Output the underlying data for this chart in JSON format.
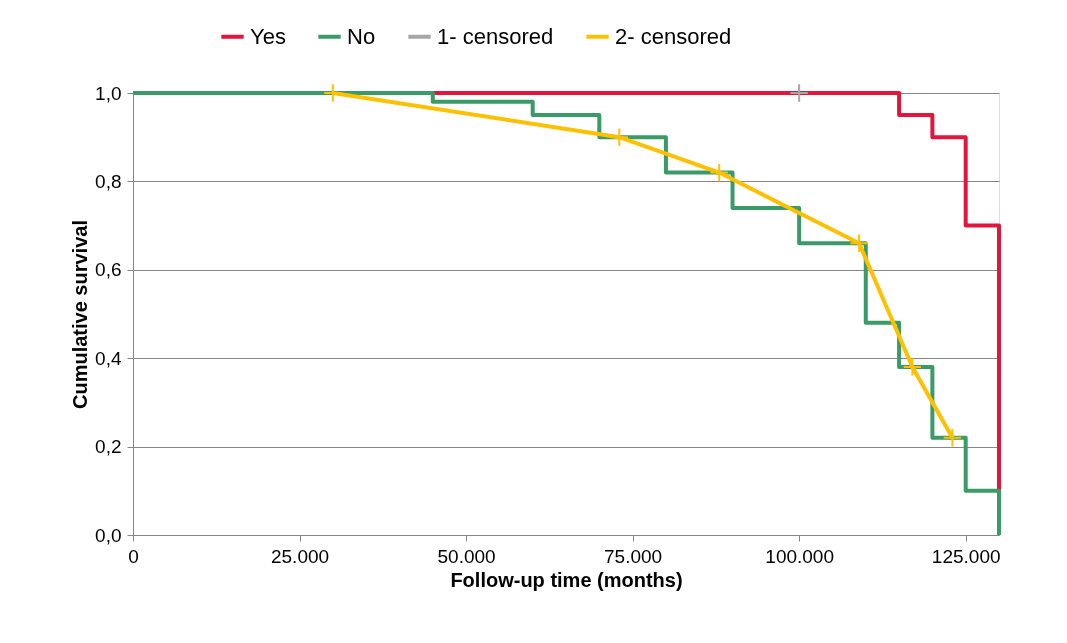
{
  "chart_data": {
    "type": "step",
    "xlabel": "Follow-up time (months)",
    "ylabel": "Cumulative survival",
    "xlim": [
      0,
      130000
    ],
    "xticks": [
      {
        "value": 0,
        "label": "0"
      },
      {
        "value": 25000,
        "label": "25.000"
      },
      {
        "value": 50000,
        "label": "50.000"
      },
      {
        "value": 75000,
        "label": "75.000"
      },
      {
        "value": 100000,
        "label": "100.000"
      },
      {
        "value": 125000,
        "label": "125.000"
      }
    ],
    "ylim": [
      0,
      1
    ],
    "yticks": [
      {
        "value": 0,
        "label": "0,0"
      },
      {
        "value": 0.2,
        "label": "0,2"
      },
      {
        "value": 0.4,
        "label": "0,4"
      },
      {
        "value": 0.6,
        "label": "0,6"
      },
      {
        "value": 0.8,
        "label": "0,8"
      },
      {
        "value": 1,
        "label": "1,0"
      }
    ],
    "grid": "y",
    "legend": "top",
    "series": [
      {
        "name": "Yes",
        "color": "#e0163c",
        "marker": "none",
        "x": [
          0,
          115000,
          120000,
          125000,
          130000
        ],
        "values": [
          1.0,
          0.95,
          0.9,
          0.7,
          0.1
        ]
      },
      {
        "name": "No",
        "color": "#3a9a68",
        "marker": "none",
        "x": [
          0,
          45000,
          60000,
          70000,
          80000,
          90000,
          100000,
          110000,
          115000,
          120000,
          125000,
          130000
        ],
        "values": [
          1.0,
          0.98,
          0.95,
          0.9,
          0.82,
          0.74,
          0.66,
          0.48,
          0.38,
          0.22,
          0.1,
          0.0
        ]
      },
      {
        "name": "1- censored",
        "type": "line",
        "color": "#a6a6a6",
        "marker": "cross",
        "x": [
          100000
        ],
        "values": [
          1.0
        ]
      },
      {
        "name": "2- censored",
        "type": "line",
        "color": "#ffc000",
        "marker": "cross",
        "x": [
          30000,
          73000,
          88000,
          109000,
          117000,
          123000
        ],
        "values": [
          1.0,
          0.9,
          0.82,
          0.66,
          0.38,
          0.22
        ]
      }
    ]
  }
}
